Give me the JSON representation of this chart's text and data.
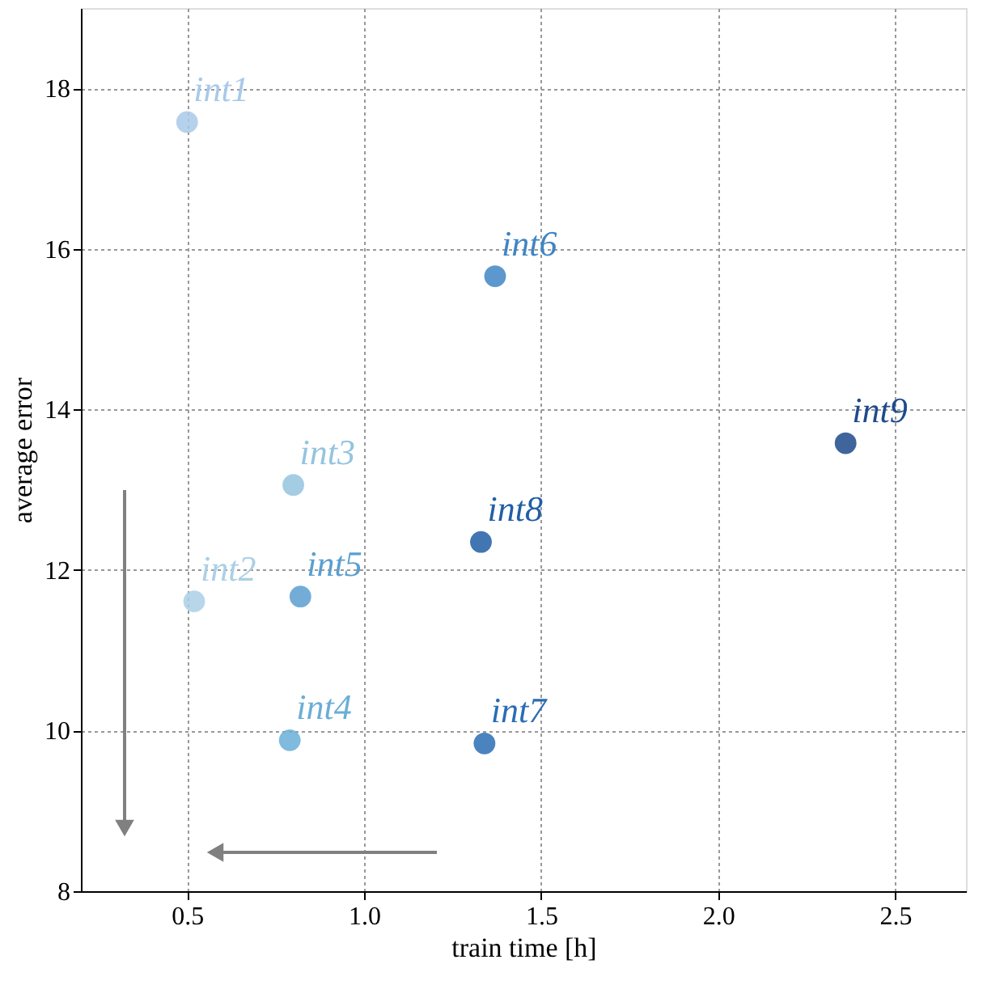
{
  "chart_data": {
    "type": "scatter",
    "xlabel": "train time [h]",
    "ylabel": "average error",
    "xlim": [
      0.2,
      2.7
    ],
    "ylim": [
      8,
      19
    ],
    "xticks": [
      0.5,
      {
        "value": 1,
        "label": "1.0"
      },
      1.5,
      {
        "value": 2,
        "label": "2.0"
      },
      2.5
    ],
    "yticks": [
      8,
      10,
      12,
      14,
      16,
      18
    ],
    "grid": true,
    "legend": false,
    "marker": "circle",
    "series": [
      {
        "name": "int1",
        "color": "#a9c9e8",
        "x": [
          0.5
        ],
        "values": [
          17.58
        ]
      },
      {
        "name": "int2",
        "color": "#abcfe6",
        "x": [
          0.52
        ],
        "values": [
          11.61
        ]
      },
      {
        "name": "int3",
        "color": "#94c4df",
        "x": [
          0.8
        ],
        "values": [
          13.06
        ]
      },
      {
        "name": "int4",
        "color": "#6aaed6",
        "x": [
          0.79
        ],
        "values": [
          9.88
        ]
      },
      {
        "name": "int5",
        "color": "#5a9fd0",
        "x": [
          0.82
        ],
        "values": [
          11.67
        ]
      },
      {
        "name": "int6",
        "color": "#3f85c4",
        "x": [
          1.37
        ],
        "values": [
          15.66
        ]
      },
      {
        "name": "int7",
        "color": "#2b6db3",
        "x": [
          1.34
        ],
        "values": [
          9.84
        ]
      },
      {
        "name": "int8",
        "color": "#215ea6",
        "x": [
          1.33
        ],
        "values": [
          12.35
        ]
      },
      {
        "name": "int9",
        "color": "#1f4a8c",
        "x": [
          2.36
        ],
        "values": [
          13.58
        ]
      }
    ]
  }
}
